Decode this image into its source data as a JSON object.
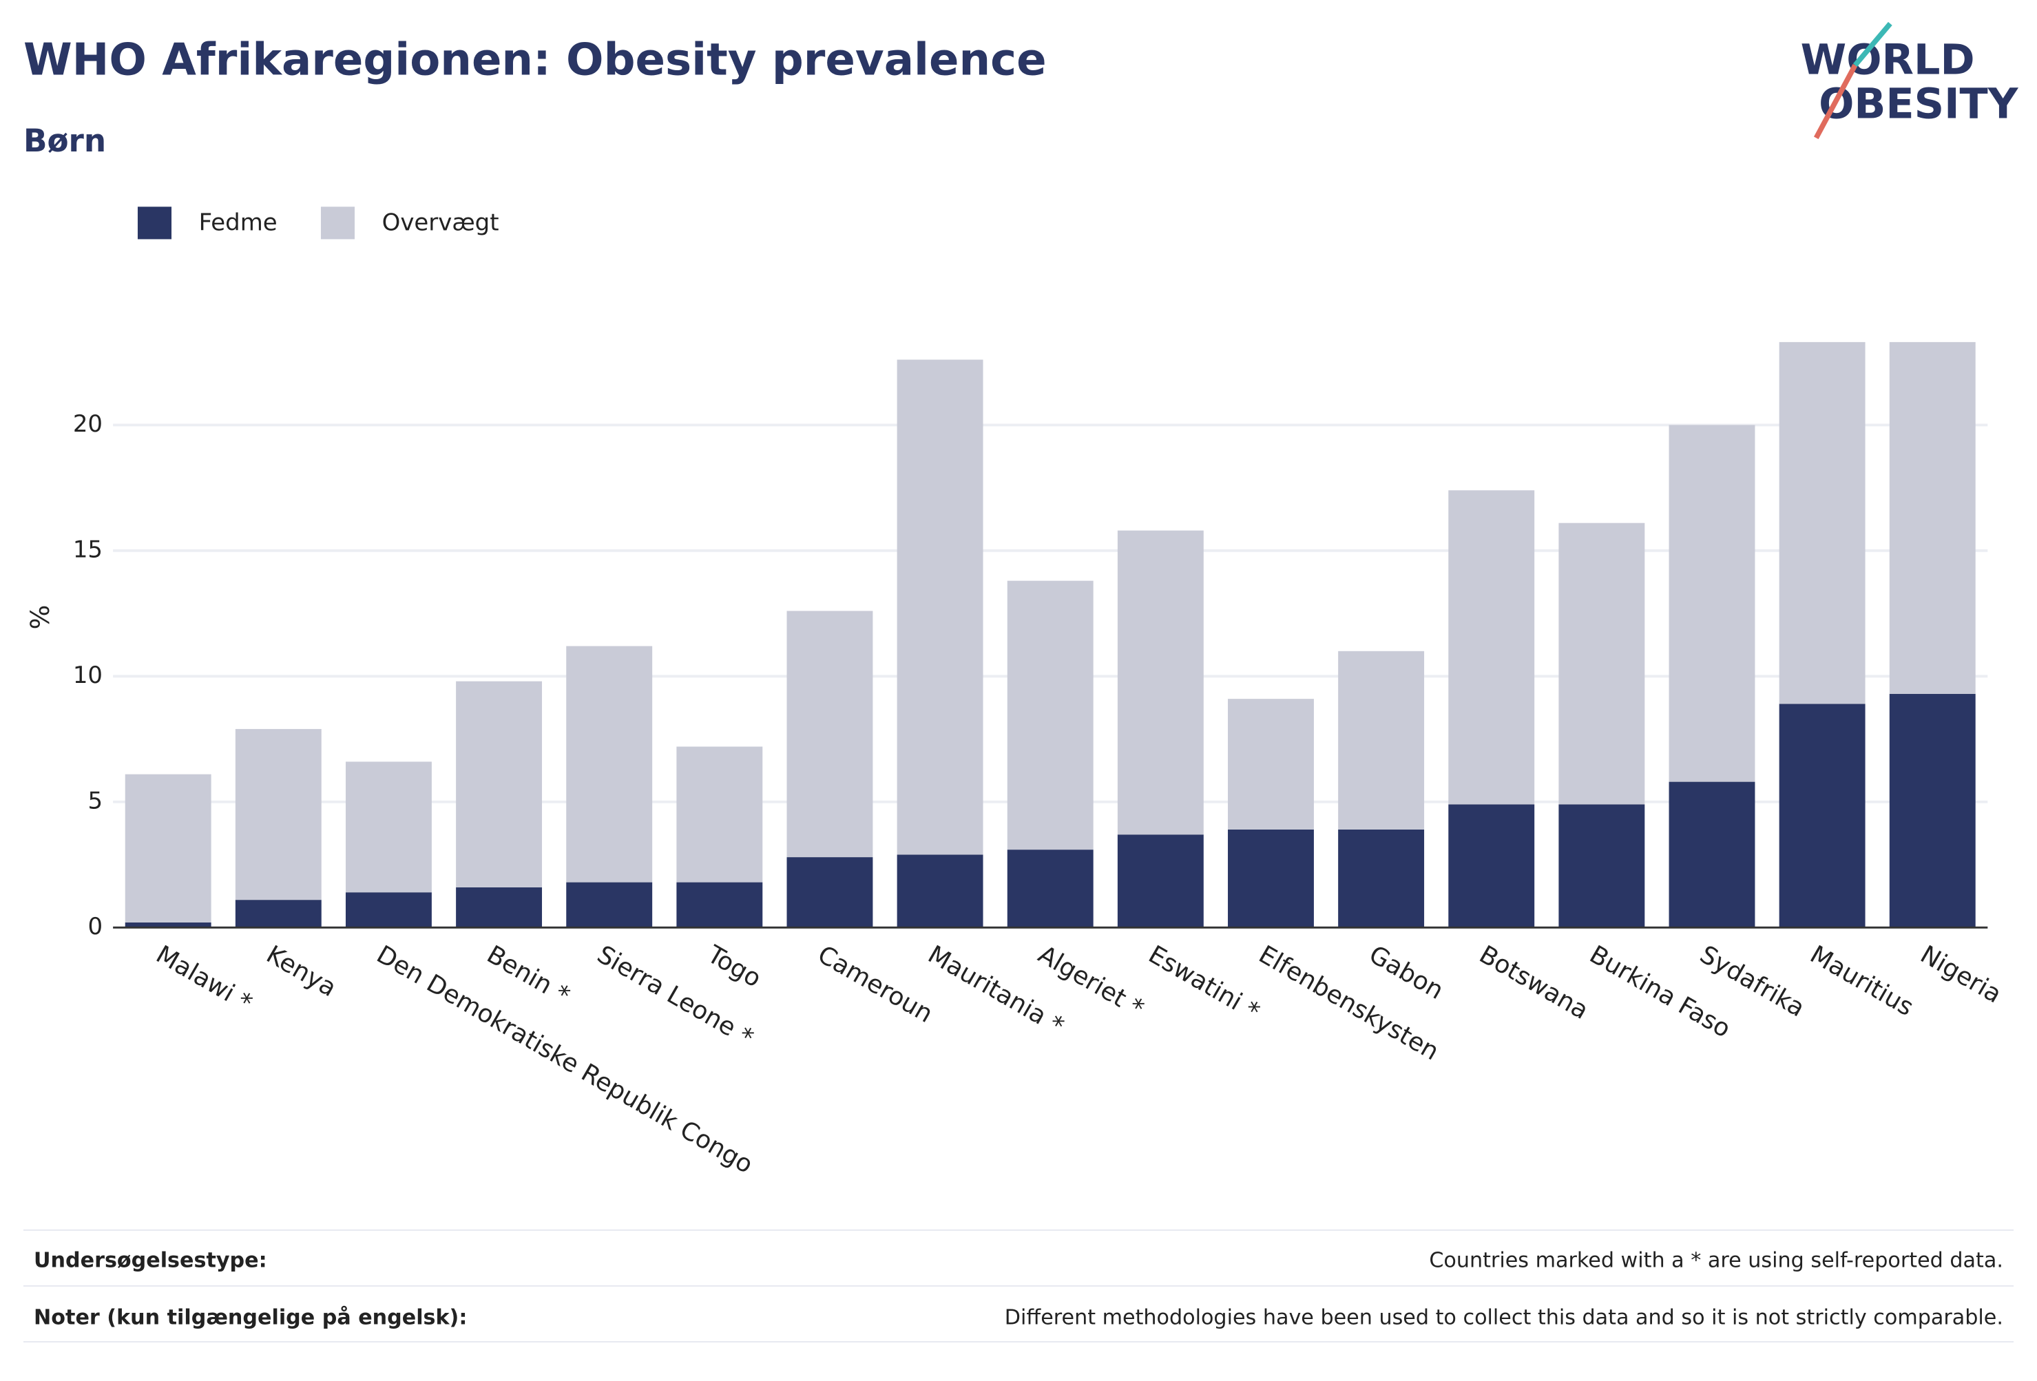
{
  "chart_data": {
    "type": "stacked_bar",
    "title": "WHO Afrikaregionen: Obesity prevalence",
    "subtitle": "Børn",
    "logo": [
      "WORLD",
      "OBESITY"
    ],
    "y_label": "%",
    "categories": [
      "Malawi *",
      "Kenya",
      "Den Demokratiske Republik Congo",
      "Benin *",
      "Sierra Leone *",
      "Togo",
      "Cameroun",
      "Mauritania *",
      "Algeriet *",
      "Eswatini *",
      "Elfenbenskysten",
      "Gabon",
      "Botswana",
      "Burkina Faso",
      "Sydafrika",
      "Mauritius",
      "Nigeria"
    ],
    "series": [
      {
        "name": "Fedme",
        "color": "#2a3664",
        "values": [
          0.2,
          1.1,
          1.4,
          1.6,
          1.8,
          1.8,
          2.8,
          2.9,
          3.1,
          3.7,
          3.9,
          3.9,
          4.9,
          4.9,
          5.8,
          8.9,
          9.3
        ]
      },
      {
        "name": "Overvægt",
        "color": "#c9cbd7",
        "values": [
          5.9,
          6.8,
          5.2,
          8.2,
          9.4,
          5.4,
          9.8,
          19.7,
          10.7,
          12.1,
          5.2,
          7.1,
          12.5,
          11.2,
          14.2,
          14.4,
          14.0
        ]
      }
    ],
    "ylim": [
      0,
      24.5
    ],
    "yticks": [
      0,
      5,
      10,
      15,
      20
    ],
    "grid": true,
    "notes": [
      {
        "label": "Undersøgelsestype:",
        "text": "Countries marked with a * are using self-reported data."
      },
      {
        "label": "Noter (kun tilgængelige på engelsk):",
        "text": "Different methodologies have been used to collect this data and so it is not strictly comparable."
      }
    ]
  }
}
